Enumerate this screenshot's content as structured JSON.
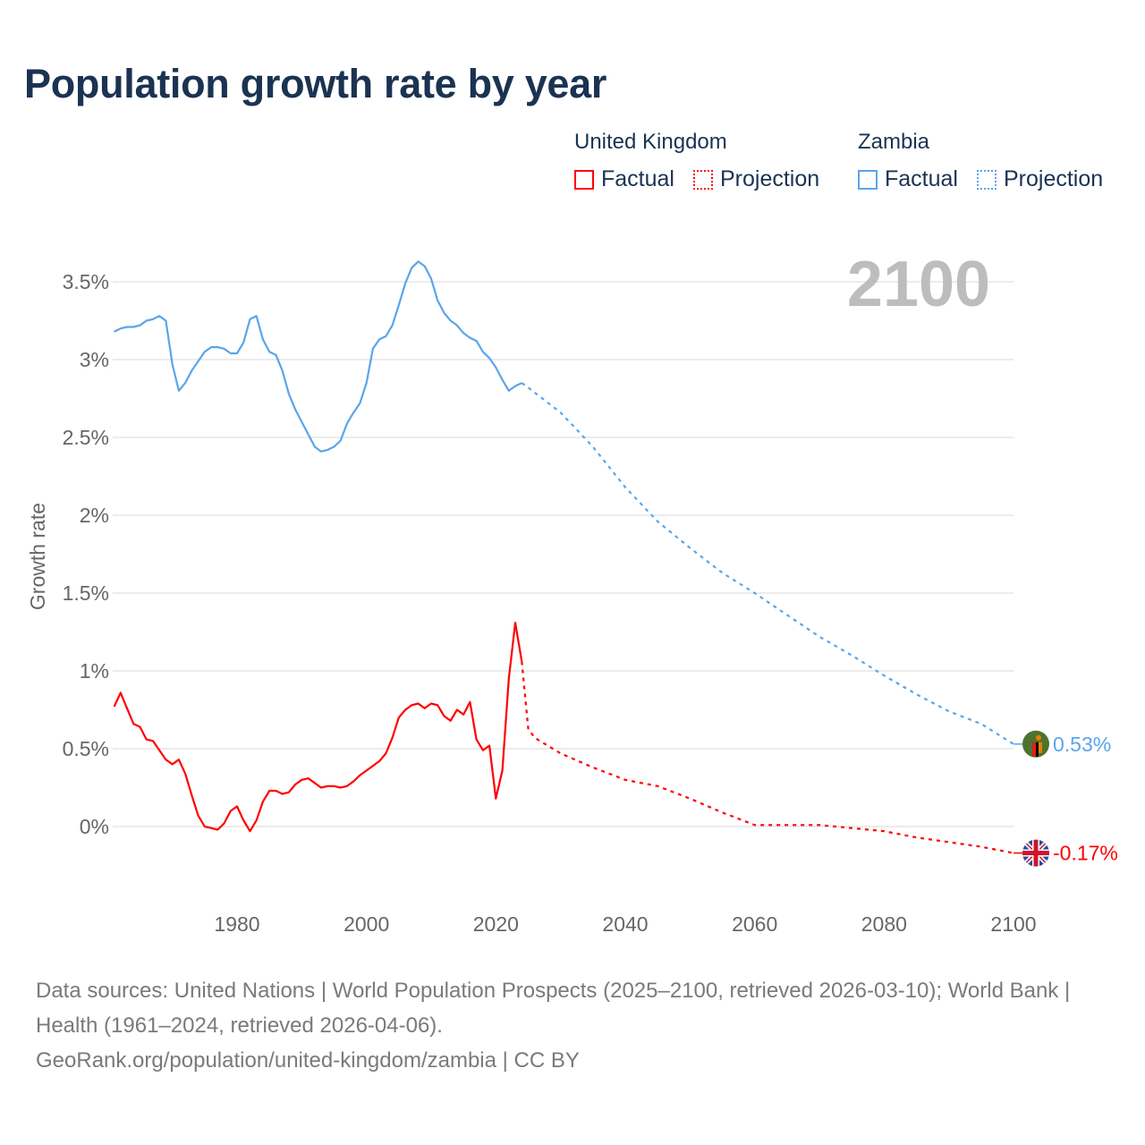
{
  "title": "Population growth rate by year",
  "legend": {
    "groups": [
      {
        "country": "United Kingdom",
        "factual_label": "Factual",
        "projection_label": "Projection",
        "color": "#ff0000"
      },
      {
        "country": "Zambia",
        "factual_label": "Factual",
        "projection_label": "Projection",
        "color": "#5aa5ea"
      }
    ]
  },
  "footer": {
    "sources": "Data sources: United Nations | World Population Prospects (2025–2100, retrieved 2026-03-10); World Bank | Health (1961–2024, retrieved 2026-04-06).",
    "credit": "GeoRank.org/population/united-kingdom/zambia | CC BY"
  },
  "chart_data": {
    "type": "line",
    "title": "Population growth rate by year",
    "year_label": "2100",
    "xlabel": "",
    "ylabel": "Growth rate",
    "xlim": [
      1961,
      2100
    ],
    "ylim": [
      -0.5,
      3.7
    ],
    "x_ticks": [
      1980,
      2000,
      2020,
      2040,
      2060,
      2080,
      2100
    ],
    "y_ticks": [
      0,
      0.5,
      1,
      1.5,
      2,
      2.5,
      3,
      3.5
    ],
    "y_tick_labels": [
      "0%",
      "0.5%",
      "1%",
      "1.5%",
      "2%",
      "2.5%",
      "3%",
      "3.5%"
    ],
    "grid": true,
    "legend_position": "top-right",
    "series": [
      {
        "name": "Zambia",
        "color": "#5aa5ea",
        "end_label": "0.53%",
        "end_value": 0.53,
        "flag": "zambia-flag",
        "factual": {
          "x": [
            1961,
            1962,
            1963,
            1964,
            1965,
            1966,
            1967,
            1968,
            1969,
            1970,
            1971,
            1972,
            1973,
            1974,
            1975,
            1976,
            1977,
            1978,
            1979,
            1980,
            1981,
            1982,
            1983,
            1984,
            1985,
            1986,
            1987,
            1988,
            1989,
            1990,
            1991,
            1992,
            1993,
            1994,
            1995,
            1996,
            1997,
            1998,
            1999,
            2000,
            2001,
            2002,
            2003,
            2004,
            2005,
            2006,
            2007,
            2008,
            2009,
            2010,
            2011,
            2012,
            2013,
            2014,
            2015,
            2016,
            2017,
            2018,
            2019,
            2020,
            2021,
            2022,
            2023,
            2024
          ],
          "y": [
            3.18,
            3.2,
            3.21,
            3.21,
            3.22,
            3.25,
            3.26,
            3.28,
            3.25,
            2.97,
            2.8,
            2.85,
            2.93,
            2.99,
            3.05,
            3.08,
            3.08,
            3.07,
            3.04,
            3.04,
            3.11,
            3.26,
            3.28,
            3.13,
            3.05,
            3.03,
            2.93,
            2.78,
            2.68,
            2.6,
            2.52,
            2.44,
            2.41,
            2.42,
            2.44,
            2.48,
            2.59,
            2.66,
            2.72,
            2.85,
            3.07,
            3.13,
            3.15,
            3.22,
            3.35,
            3.49,
            3.59,
            3.63,
            3.6,
            3.52,
            3.38,
            3.3,
            3.25,
            3.22,
            3.17,
            3.14,
            3.12,
            3.05,
            3.01,
            2.95,
            2.87,
            2.8,
            2.83,
            2.85
          ]
        },
        "projection": {
          "x": [
            2024,
            2025,
            2030,
            2035,
            2040,
            2045,
            2050,
            2055,
            2060,
            2065,
            2070,
            2075,
            2080,
            2085,
            2090,
            2095,
            2100
          ],
          "y": [
            2.85,
            2.82,
            2.66,
            2.44,
            2.18,
            1.96,
            1.79,
            1.63,
            1.5,
            1.36,
            1.22,
            1.1,
            0.97,
            0.85,
            0.74,
            0.66,
            0.53
          ]
        }
      },
      {
        "name": "United Kingdom",
        "color": "#ff0000",
        "end_label": "-0.17%",
        "end_value": -0.17,
        "flag": "uk-flag",
        "factual": {
          "x": [
            1961,
            1962,
            1963,
            1964,
            1965,
            1966,
            1967,
            1968,
            1969,
            1970,
            1971,
            1972,
            1973,
            1974,
            1975,
            1976,
            1977,
            1978,
            1979,
            1980,
            1981,
            1982,
            1983,
            1984,
            1985,
            1986,
            1987,
            1988,
            1989,
            1990,
            1991,
            1992,
            1993,
            1994,
            1995,
            1996,
            1997,
            1998,
            1999,
            2000,
            2001,
            2002,
            2003,
            2004,
            2005,
            2006,
            2007,
            2008,
            2009,
            2010,
            2011,
            2012,
            2013,
            2014,
            2015,
            2016,
            2017,
            2018,
            2019,
            2020,
            2021,
            2022,
            2023,
            2024
          ],
          "y": [
            0.77,
            0.86,
            0.76,
            0.66,
            0.64,
            0.56,
            0.55,
            0.49,
            0.43,
            0.4,
            0.43,
            0.34,
            0.2,
            0.07,
            0.0,
            -0.01,
            -0.02,
            0.02,
            0.1,
            0.13,
            0.04,
            -0.03,
            0.04,
            0.16,
            0.23,
            0.23,
            0.21,
            0.22,
            0.27,
            0.3,
            0.31,
            0.28,
            0.25,
            0.26,
            0.26,
            0.25,
            0.26,
            0.29,
            0.33,
            0.36,
            0.39,
            0.42,
            0.47,
            0.57,
            0.7,
            0.75,
            0.78,
            0.79,
            0.76,
            0.79,
            0.78,
            0.71,
            0.68,
            0.75,
            0.72,
            0.8,
            0.56,
            0.49,
            0.52,
            0.18,
            0.36,
            0.95,
            1.31,
            1.06
          ]
        },
        "projection": {
          "x": [
            2024,
            2025,
            2026,
            2030,
            2035,
            2040,
            2045,
            2050,
            2055,
            2060,
            2065,
            2070,
            2075,
            2080,
            2085,
            2090,
            2095,
            2100
          ],
          "y": [
            1.06,
            0.63,
            0.57,
            0.47,
            0.38,
            0.3,
            0.26,
            0.18,
            0.09,
            0.01,
            0.01,
            0.01,
            -0.01,
            -0.03,
            -0.07,
            -0.1,
            -0.13,
            -0.17
          ]
        }
      }
    ]
  }
}
